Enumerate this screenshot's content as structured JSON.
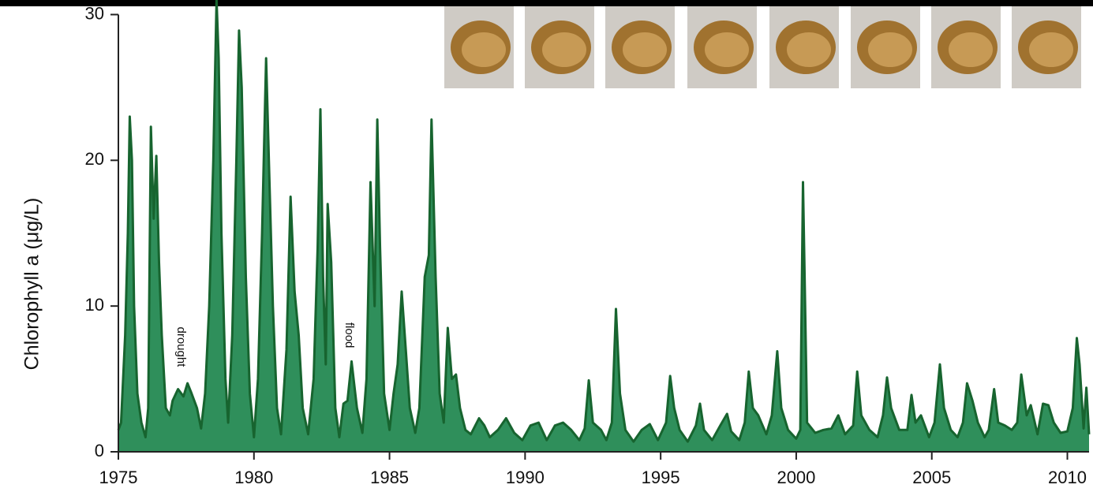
{
  "chart_data": {
    "type": "area",
    "y_label": "Chlorophyll a (μg/L)",
    "x": [
      1975.0,
      1975.1,
      1975.25,
      1975.35,
      1975.42,
      1975.5,
      1975.58,
      1975.7,
      1975.85,
      1976.0,
      1976.1,
      1976.2,
      1976.3,
      1976.4,
      1976.5,
      1976.6,
      1976.75,
      1976.9,
      1977.0,
      1977.2,
      1977.4,
      1977.55,
      1977.7,
      1977.9,
      1978.05,
      1978.2,
      1978.35,
      1978.5,
      1978.62,
      1978.7,
      1978.8,
      1978.95,
      1979.05,
      1979.2,
      1979.35,
      1979.45,
      1979.55,
      1979.7,
      1979.85,
      1980.0,
      1980.15,
      1980.3,
      1980.45,
      1980.55,
      1980.7,
      1980.85,
      1981.0,
      1981.2,
      1981.35,
      1981.5,
      1981.65,
      1981.8,
      1982.0,
      1982.2,
      1982.35,
      1982.45,
      1982.55,
      1982.65,
      1982.72,
      1982.85,
      1983.0,
      1983.15,
      1983.3,
      1983.45,
      1983.6,
      1983.8,
      1984.0,
      1984.15,
      1984.3,
      1984.45,
      1984.55,
      1984.65,
      1984.8,
      1985.0,
      1985.15,
      1985.3,
      1985.45,
      1985.6,
      1985.75,
      1985.95,
      1986.1,
      1986.3,
      1986.45,
      1986.55,
      1986.7,
      1986.85,
      1987.0,
      1987.15,
      1987.3,
      1987.45,
      1987.6,
      1987.8,
      1988.0,
      1988.3,
      1988.5,
      1988.7,
      1989.0,
      1989.3,
      1989.6,
      1989.9,
      1990.2,
      1990.5,
      1990.8,
      1991.1,
      1991.4,
      1991.7,
      1992.0,
      1992.2,
      1992.35,
      1992.5,
      1992.8,
      1993.0,
      1993.2,
      1993.35,
      1993.5,
      1993.7,
      1994.0,
      1994.3,
      1994.6,
      1994.9,
      1995.2,
      1995.35,
      1995.5,
      1995.7,
      1996.0,
      1996.3,
      1996.45,
      1996.6,
      1996.9,
      1997.2,
      1997.45,
      1997.6,
      1997.9,
      1998.1,
      1998.25,
      1998.4,
      1998.6,
      1998.9,
      1999.1,
      1999.3,
      1999.45,
      1999.7,
      2000.0,
      2000.15,
      2000.25,
      2000.32,
      2000.4,
      2000.7,
      2001.0,
      2001.3,
      2001.55,
      2001.8,
      2002.1,
      2002.25,
      2002.4,
      2002.7,
      2003.0,
      2003.2,
      2003.35,
      2003.5,
      2003.8,
      2004.1,
      2004.25,
      2004.4,
      2004.6,
      2004.9,
      2005.1,
      2005.3,
      2005.45,
      2005.7,
      2005.95,
      2006.15,
      2006.3,
      2006.5,
      2006.7,
      2006.95,
      2007.1,
      2007.3,
      2007.45,
      2007.7,
      2007.95,
      2008.15,
      2008.3,
      2008.5,
      2008.65,
      2008.9,
      2009.1,
      2009.3,
      2009.5,
      2009.75,
      2010.0,
      2010.2,
      2010.35,
      2010.45,
      2010.6,
      2010.7,
      2010.8
    ],
    "values": [
      1.5,
      2.0,
      8,
      15,
      23,
      20,
      10,
      4,
      2,
      1.0,
      3,
      22.3,
      16,
      20.3,
      13,
      8,
      3,
      2.5,
      3.5,
      4.3,
      3.8,
      4.7,
      4,
      3,
      1.6,
      4,
      10,
      20,
      31,
      27,
      15,
      5,
      2,
      8,
      20,
      28.9,
      25,
      12,
      4,
      1.0,
      5,
      15,
      27,
      20,
      10,
      3,
      1.2,
      7,
      17.5,
      11,
      8,
      3,
      1.2,
      5,
      14,
      23.5,
      12,
      6,
      17,
      13,
      3,
      1.0,
      3.3,
      3.5,
      6.2,
      3,
      1.3,
      5,
      18.5,
      10,
      22.8,
      14,
      4,
      1.5,
      4,
      6,
      11,
      7,
      3,
      1.3,
      3,
      12,
      13.5,
      22.8,
      12,
      4,
      2,
      8.5,
      5,
      5.3,
      3,
      1.5,
      1.2,
      2.3,
      1.8,
      1.0,
      1.5,
      2.3,
      1.3,
      0.8,
      1.8,
      2,
      0.8,
      1.8,
      2.0,
      1.5,
      0.8,
      1.6,
      4.9,
      2,
      1.5,
      0.8,
      2,
      9.8,
      4,
      1.5,
      0.7,
      1.5,
      1.9,
      0.8,
      2,
      5.2,
      3,
      1.5,
      0.7,
      1.8,
      3.3,
      1.5,
      0.8,
      1.8,
      2.6,
      1.4,
      0.8,
      2,
      5.5,
      3,
      2.5,
      1.2,
      2.5,
      6.9,
      3,
      1.5,
      0.9,
      1.5,
      18.5,
      11,
      2,
      1.3,
      1.5,
      1.6,
      2.5,
      1.2,
      1.8,
      5.5,
      2.5,
      1.5,
      1.0,
      2.5,
      5.1,
      3,
      1.5,
      1.5,
      3.9,
      2,
      2.5,
      1.0,
      2,
      6,
      3,
      1.5,
      1.0,
      2,
      4.7,
      3.5,
      2,
      1.0,
      1.5,
      4.3,
      2,
      1.8,
      1.5,
      2,
      5.3,
      2.5,
      3.2,
      1.2,
      3.3,
      3.2,
      2,
      1.3,
      1.4,
      3,
      7.8,
      6,
      1.6,
      4.4,
      1.2
    ],
    "fill_color": "#2f8f5b",
    "line_color": "#17642f",
    "xlim": [
      1975,
      2010.8
    ],
    "xticks": [
      1975,
      1980,
      1985,
      1990,
      1995,
      2000,
      2005,
      2010
    ],
    "ylim": [
      0,
      31
    ],
    "yticks": [
      0,
      10,
      20,
      30
    ],
    "annotations": [
      {
        "text": "drought",
        "x": 1977.3,
        "y": 7.2
      },
      {
        "text": "flood",
        "x": 1983.5,
        "y": 8
      }
    ]
  }
}
